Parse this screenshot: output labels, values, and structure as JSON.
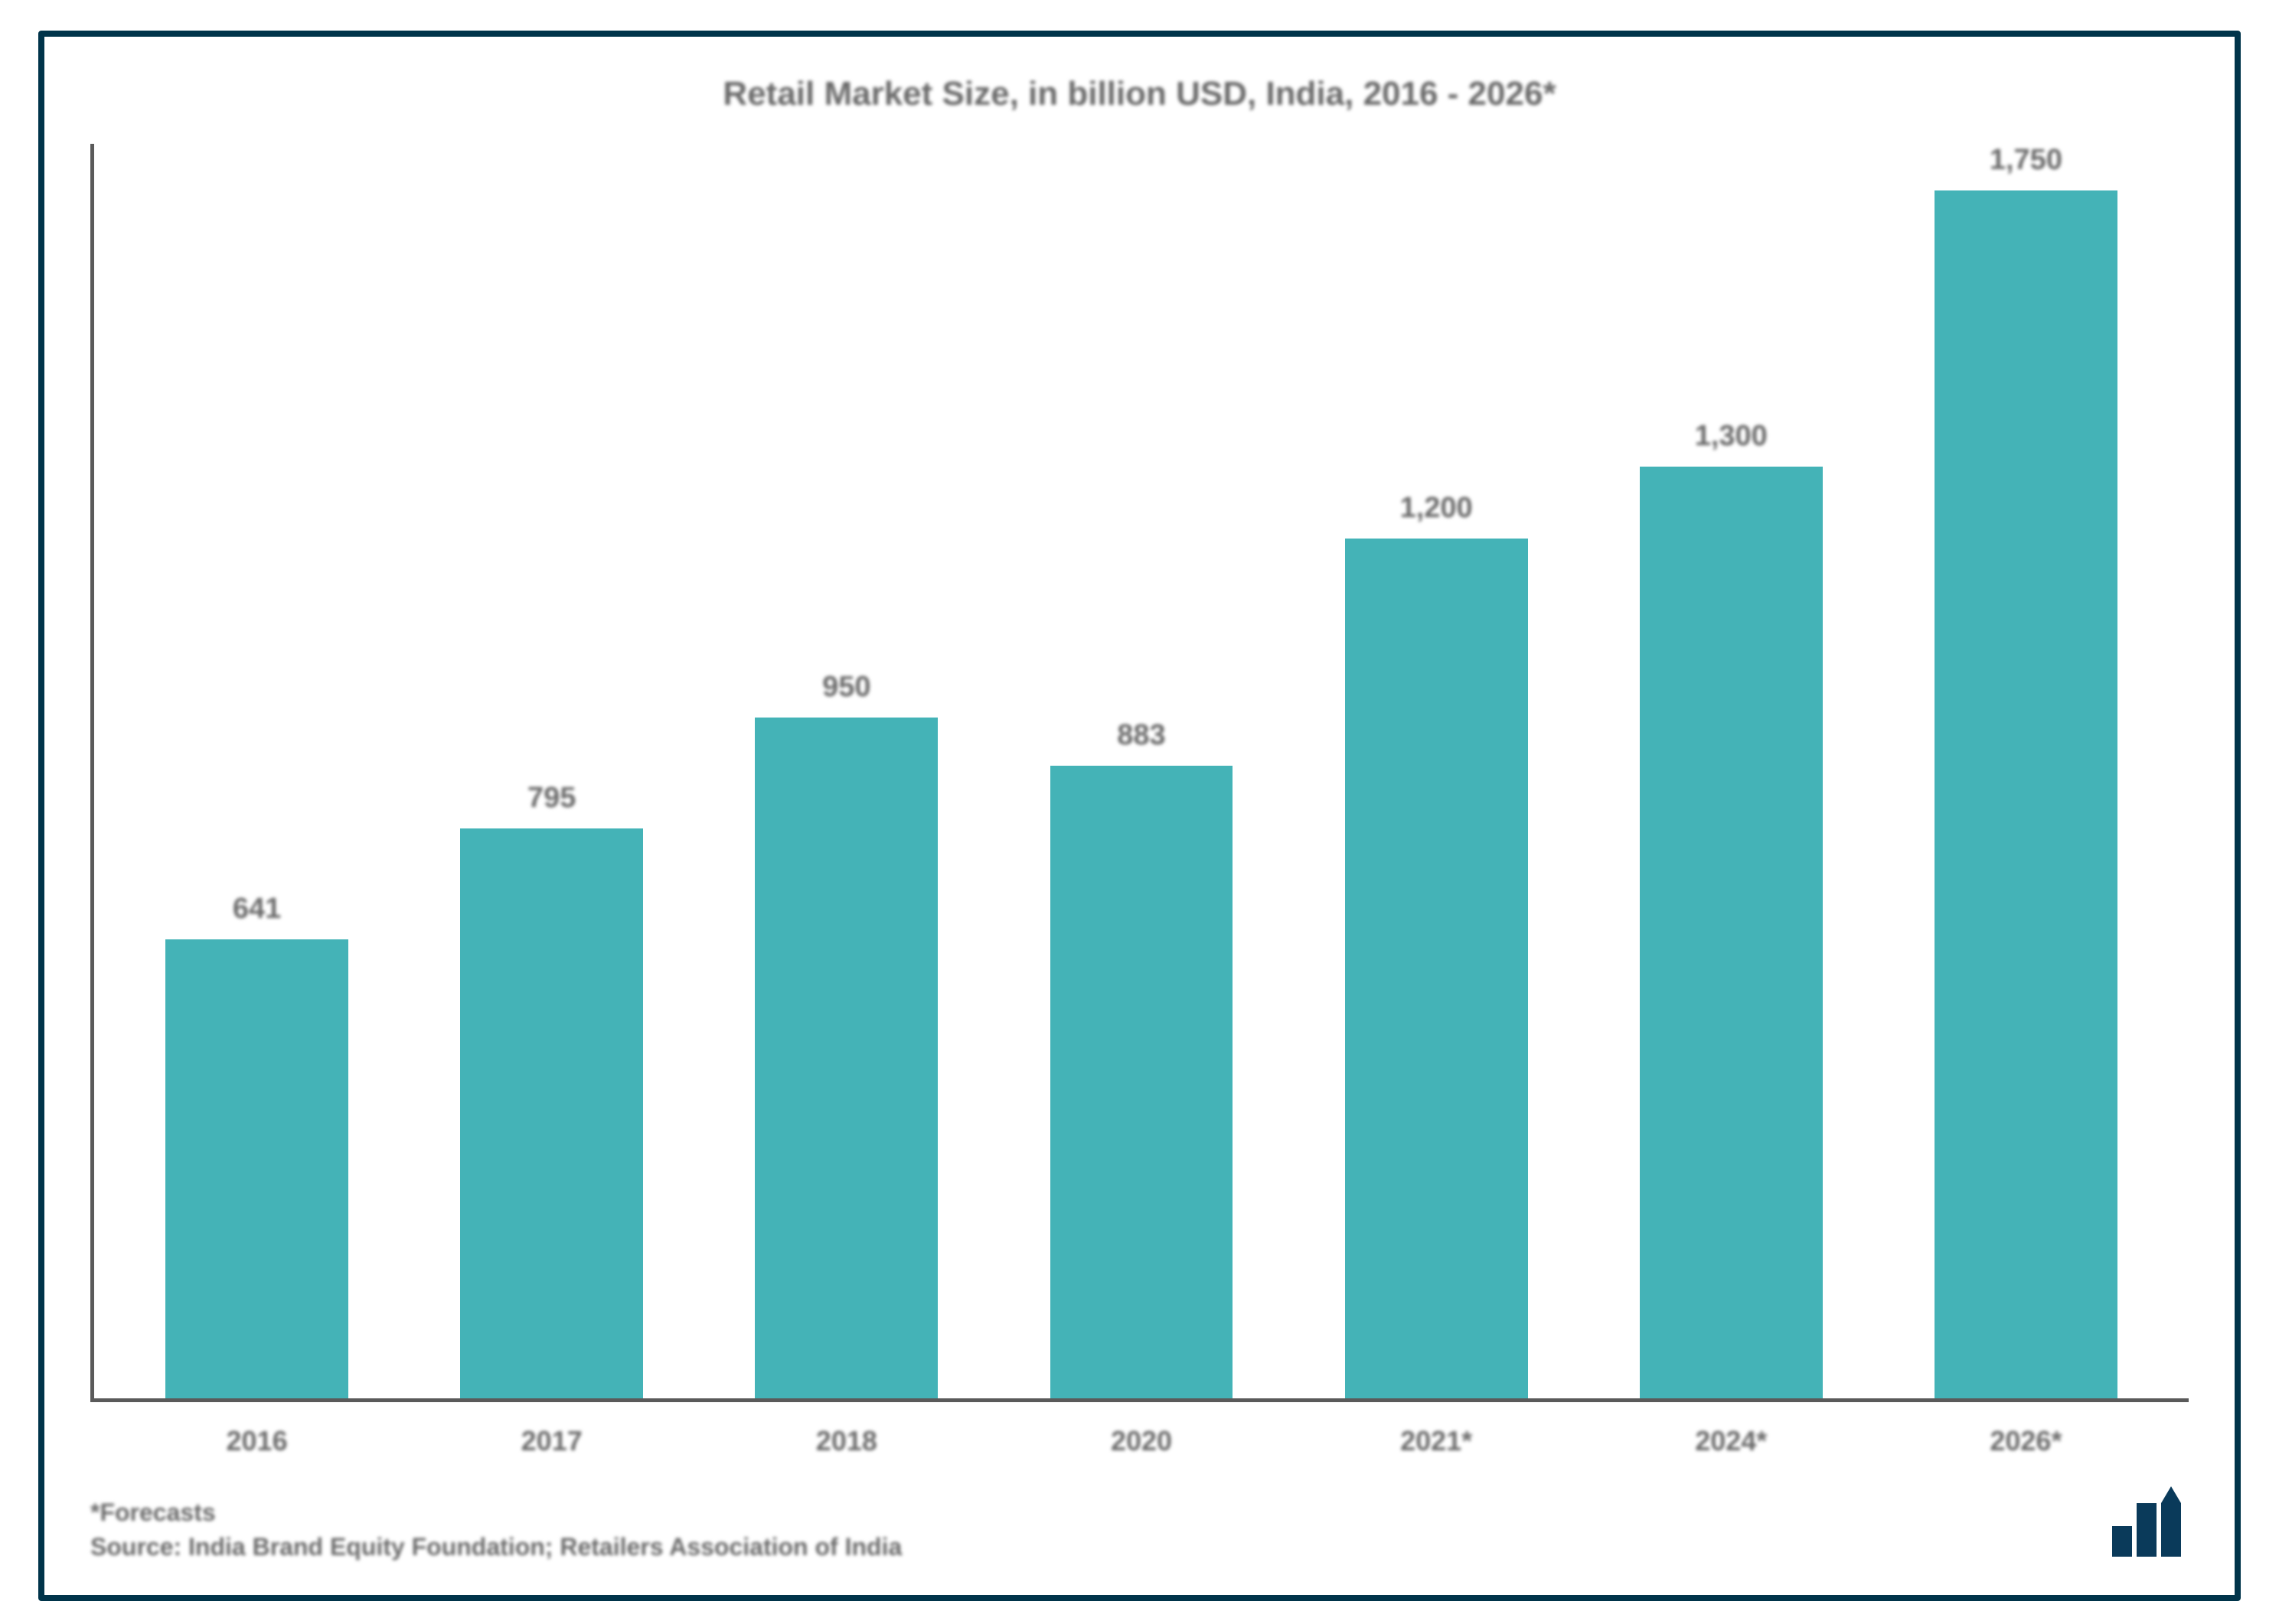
{
  "chart": {
    "type": "bar",
    "title": "Retail Market Size, in billion USD, India, 2016 - 2026*",
    "title_fontsize": 44,
    "title_color": "#6a6a6a",
    "border_color": "#00344a",
    "border_width": 8,
    "background_color": "#ffffff",
    "axis_color": "#5a5a5a",
    "axis_width": 5,
    "bar_color": "#44b3b7",
    "bar_width_ratio": 0.62,
    "label_color": "#6a6a6a",
    "label_fontsize": 38,
    "xtick_fontsize": 36,
    "xtick_color": "#6a6a6a",
    "ylim_max": 1750,
    "categories": [
      "2016",
      "2017",
      "2018",
      "2020",
      "2021*",
      "2024*",
      "2026*"
    ],
    "values": [
      641,
      795,
      950,
      883,
      1200,
      1300,
      1750
    ],
    "value_labels": [
      "641",
      "795",
      "950",
      "883",
      "1,200",
      "1,300",
      "1,750"
    ]
  },
  "footer": {
    "forecast_note": "*Forecasts",
    "source_line": "Source: India Brand Equity Foundation; Retailers Association of India",
    "fontsize": 32,
    "color": "#6a6a6a"
  },
  "logo": {
    "color": "#0a3a5a"
  }
}
